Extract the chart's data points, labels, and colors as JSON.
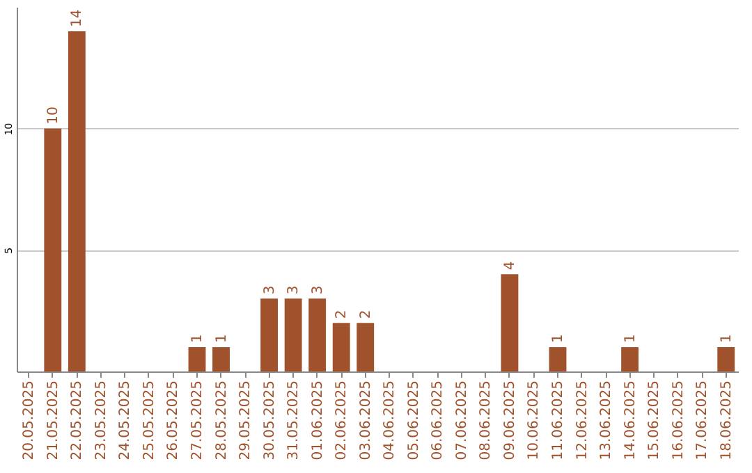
{
  "chart_data": {
    "type": "bar",
    "categories": [
      "20.05.2025",
      "21.05.2025",
      "22.05.2025",
      "23.05.2025",
      "24.05.2025",
      "25.05.2025",
      "26.05.2025",
      "27.05.2025",
      "28.05.2025",
      "29.05.2025",
      "30.05.2025",
      "31.05.2025",
      "01.06.2025",
      "02.06.2025",
      "03.06.2025",
      "04.06.2025",
      "05.06.2025",
      "06.06.2025",
      "07.06.2025",
      "08.06.2025",
      "09.06.2025",
      "10.06.2025",
      "11.06.2025",
      "12.06.2025",
      "13.06.2025",
      "14.06.2025",
      "15.06.2025",
      "16.06.2025",
      "17.06.2025",
      "18.06.2025"
    ],
    "values": [
      0,
      10,
      14,
      0,
      0,
      0,
      0,
      1,
      1,
      0,
      3,
      3,
      3,
      2,
      2,
      0,
      0,
      0,
      0,
      0,
      4,
      0,
      1,
      0,
      0,
      1,
      0,
      0,
      0,
      1
    ],
    "value_labels": [
      null,
      "10",
      "14",
      null,
      null,
      null,
      null,
      "1",
      "1",
      null,
      "3",
      "3",
      "3",
      "2",
      "2",
      null,
      null,
      null,
      null,
      null,
      "4",
      null,
      "1",
      null,
      null,
      "1",
      null,
      null,
      null,
      "1"
    ],
    "color": "#a0522d",
    "ylim": [
      0,
      15
    ],
    "yticks": [
      5,
      10
    ],
    "grid": "y"
  }
}
